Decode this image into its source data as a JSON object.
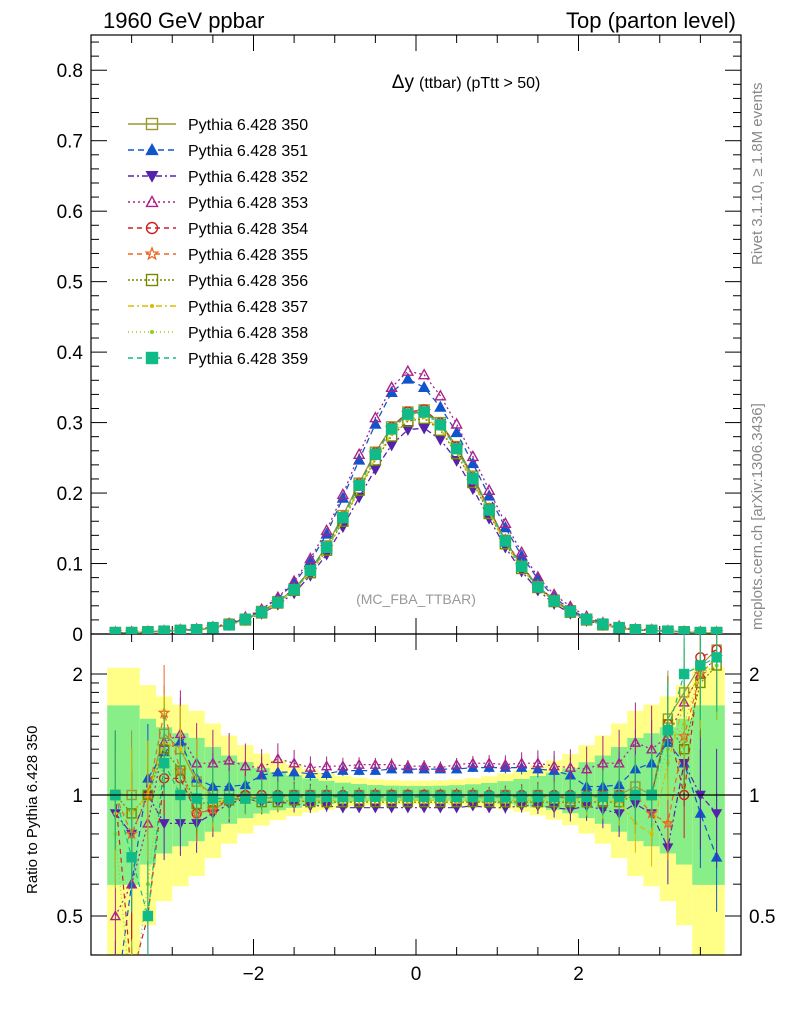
{
  "header": {
    "left": "1960 GeV ppbar",
    "right": "Top (parton level)"
  },
  "side": {
    "rivet": "Rivet 3.1.10, ≥ 1.8M events",
    "mcplots": "mcplots.cern.ch [arXiv:1306.3436]"
  },
  "chart_data": {
    "type": "line",
    "title": "Δy (ttbar) (pTtt > 50)",
    "title_main": "Δy",
    "title_sub": "(ttbar) (pTtt > 50)",
    "watermark": "(MC_FBA_TTBAR)",
    "ratio_ylabel": "Ratio to Pythia 6.428 350",
    "xlim": [
      -4.0,
      4.0
    ],
    "ylim": [
      0,
      0.85
    ],
    "ratio_ylim": [
      0.35,
      2.35
    ],
    "yticks": [
      "0",
      "0.1",
      "0.2",
      "0.3",
      "0.4",
      "0.5",
      "0.6",
      "0.7",
      "0.8"
    ],
    "xticks": [
      "−2",
      "0",
      "2"
    ],
    "ratio_yticks": [
      "0.5",
      "1",
      "2"
    ],
    "grid": false,
    "legend_position": "top-left",
    "x": [
      -3.7,
      -3.5,
      -3.3,
      -3.1,
      -2.9,
      -2.7,
      -2.5,
      -2.3,
      -2.1,
      -1.9,
      -1.7,
      -1.5,
      -1.3,
      -1.1,
      -0.9,
      -0.7,
      -0.5,
      -0.3,
      -0.1,
      0.1,
      0.3,
      0.5,
      0.7,
      0.9,
      1.1,
      1.3,
      1.5,
      1.7,
      1.9,
      2.1,
      2.3,
      2.5,
      2.7,
      2.9,
      3.1,
      3.3,
      3.5,
      3.7
    ],
    "series": [
      {
        "name": "Pythia 6.428 350",
        "color": "#999933",
        "marker": "square-open",
        "dash": "",
        "values": [
          0.002,
          0.002,
          0.003,
          0.004,
          0.005,
          0.006,
          0.009,
          0.014,
          0.021,
          0.032,
          0.046,
          0.064,
          0.091,
          0.125,
          0.168,
          0.214,
          0.258,
          0.294,
          0.315,
          0.318,
          0.3,
          0.266,
          0.224,
          0.178,
          0.133,
          0.097,
          0.068,
          0.048,
          0.033,
          0.021,
          0.014,
          0.009,
          0.006,
          0.005,
          0.004,
          0.003,
          0.002,
          0.002
        ],
        "ratio": [
          1.0,
          1.0,
          1.0,
          1.42,
          1.3,
          1.08,
          1.0,
          1.0,
          0.99,
          0.98,
          0.99,
          1.0,
          1.0,
          1.0,
          0.99,
          1.0,
          1.0,
          1.0,
          1.0,
          1.0,
          1.0,
          1.0,
          1.0,
          0.99,
          1.0,
          0.99,
          1.0,
          0.99,
          0.98,
          0.99,
          1.0,
          1.0,
          1.05,
          1.0,
          1.55,
          1.8,
          2.1,
          2.3
        ]
      },
      {
        "name": "Pythia 6.428 351",
        "color": "#1155cc",
        "marker": "triangle-up",
        "dash": "6,4",
        "values": [
          0.001,
          0.002,
          0.003,
          0.004,
          0.005,
          0.007,
          0.009,
          0.014,
          0.022,
          0.034,
          0.051,
          0.072,
          0.103,
          0.142,
          0.193,
          0.247,
          0.298,
          0.343,
          0.362,
          0.35,
          0.322,
          0.286,
          0.242,
          0.196,
          0.151,
          0.111,
          0.078,
          0.052,
          0.035,
          0.022,
          0.015,
          0.009,
          0.006,
          0.005,
          0.004,
          0.003,
          0.002,
          0.001
        ],
        "ratio": [
          0.3,
          0.6,
          1.1,
          1.28,
          1.36,
          1.1,
          1.05,
          1.05,
          1.06,
          1.12,
          1.14,
          1.14,
          1.13,
          1.13,
          1.15,
          1.15,
          1.15,
          1.16,
          1.16,
          1.16,
          1.16,
          1.16,
          1.17,
          1.17,
          1.17,
          1.17,
          1.16,
          1.15,
          1.12,
          1.05,
          1.05,
          1.06,
          1.16,
          1.2,
          1.35,
          1.2,
          0.9,
          0.7
        ]
      },
      {
        "name": "Pythia 6.428 352",
        "color": "#5522aa",
        "marker": "triangle-down",
        "dash": "6,3,2,3",
        "values": [
          0.002,
          0.002,
          0.003,
          0.004,
          0.005,
          0.006,
          0.008,
          0.013,
          0.02,
          0.029,
          0.042,
          0.058,
          0.083,
          0.113,
          0.152,
          0.194,
          0.234,
          0.268,
          0.29,
          0.292,
          0.276,
          0.246,
          0.206,
          0.164,
          0.123,
          0.089,
          0.062,
          0.043,
          0.029,
          0.019,
          0.013,
          0.008,
          0.006,
          0.005,
          0.004,
          0.003,
          0.002,
          0.002
        ],
        "ratio": [
          0.9,
          0.8,
          1.0,
          0.85,
          0.85,
          0.85,
          0.9,
          0.95,
          0.98,
          0.96,
          0.96,
          0.95,
          0.94,
          0.94,
          0.93,
          0.93,
          0.93,
          0.93,
          0.93,
          0.93,
          0.93,
          0.93,
          0.94,
          0.93,
          0.93,
          0.94,
          0.94,
          0.93,
          0.92,
          0.94,
          0.92,
          0.9,
          0.95,
          0.9,
          0.74,
          1.2,
          1.0,
          0.9
        ]
      },
      {
        "name": "Pythia 6.428 353",
        "color": "#aa2288",
        "marker": "triangle-up-open",
        "dash": "2,3",
        "values": [
          0.002,
          0.002,
          0.003,
          0.004,
          0.006,
          0.007,
          0.01,
          0.015,
          0.024,
          0.035,
          0.052,
          0.075,
          0.107,
          0.147,
          0.198,
          0.255,
          0.307,
          0.35,
          0.373,
          0.368,
          0.338,
          0.298,
          0.252,
          0.204,
          0.157,
          0.116,
          0.081,
          0.056,
          0.039,
          0.025,
          0.016,
          0.011,
          0.007,
          0.006,
          0.004,
          0.003,
          0.002,
          0.002
        ],
        "ratio": [
          0.5,
          0.6,
          0.85,
          1.35,
          1.42,
          1.2,
          1.2,
          1.22,
          1.18,
          1.17,
          1.23,
          1.2,
          1.17,
          1.18,
          1.18,
          1.19,
          1.19,
          1.19,
          1.18,
          1.18,
          1.17,
          1.19,
          1.2,
          1.2,
          1.19,
          1.2,
          1.2,
          1.18,
          1.17,
          1.16,
          1.2,
          1.2,
          1.35,
          1.3,
          1.4,
          1.7,
          2.0,
          2.2
        ]
      },
      {
        "name": "Pythia 6.428 354",
        "color": "#cc2222",
        "marker": "circle-open",
        "dash": "5,4",
        "values": [
          0.002,
          0.002,
          0.003,
          0.004,
          0.005,
          0.006,
          0.009,
          0.014,
          0.021,
          0.031,
          0.046,
          0.064,
          0.09,
          0.123,
          0.166,
          0.213,
          0.257,
          0.293,
          0.315,
          0.318,
          0.299,
          0.265,
          0.222,
          0.177,
          0.133,
          0.097,
          0.068,
          0.048,
          0.032,
          0.021,
          0.014,
          0.009,
          0.006,
          0.005,
          0.004,
          0.003,
          0.002,
          0.002
        ],
        "ratio": [
          1.0,
          0.35,
          0.5,
          1.1,
          1.1,
          0.9,
          0.92,
          0.98,
          1.0,
          1.0,
          1.0,
          1.0,
          1.0,
          1.0,
          1.0,
          1.0,
          1.0,
          1.0,
          1.0,
          1.0,
          1.0,
          1.0,
          1.0,
          1.0,
          1.0,
          1.0,
          1.0,
          1.0,
          1.0,
          1.0,
          1.0,
          1.0,
          1.0,
          1.0,
          1.5,
          1.0,
          2.2,
          2.3
        ]
      },
      {
        "name": "Pythia 6.428 355",
        "color": "#ee6622",
        "marker": "star-open",
        "dash": "5,4",
        "values": [
          0.002,
          0.002,
          0.003,
          0.004,
          0.005,
          0.006,
          0.009,
          0.013,
          0.021,
          0.031,
          0.045,
          0.063,
          0.09,
          0.123,
          0.166,
          0.213,
          0.256,
          0.292,
          0.313,
          0.316,
          0.298,
          0.264,
          0.222,
          0.177,
          0.133,
          0.097,
          0.068,
          0.047,
          0.032,
          0.021,
          0.014,
          0.009,
          0.006,
          0.005,
          0.004,
          0.003,
          0.002,
          0.002
        ],
        "ratio": [
          1.0,
          0.8,
          1.0,
          1.6,
          1.15,
          0.9,
          0.92,
          0.97,
          0.98,
          0.99,
          0.99,
          0.99,
          0.99,
          0.99,
          0.99,
          0.99,
          0.99,
          0.99,
          0.99,
          0.99,
          0.99,
          0.99,
          0.99,
          0.99,
          0.99,
          0.99,
          0.99,
          0.99,
          0.99,
          0.99,
          0.99,
          0.98,
          1.0,
          0.9,
          0.85,
          1.4,
          2.0,
          2.2
        ]
      },
      {
        "name": "Pythia 6.428 356",
        "color": "#778800",
        "marker": "square-open",
        "dash": "2,2",
        "values": [
          0.002,
          0.002,
          0.003,
          0.004,
          0.005,
          0.006,
          0.009,
          0.013,
          0.02,
          0.03,
          0.044,
          0.062,
          0.087,
          0.119,
          0.16,
          0.204,
          0.247,
          0.281,
          0.302,
          0.306,
          0.289,
          0.256,
          0.215,
          0.171,
          0.128,
          0.093,
          0.066,
          0.046,
          0.031,
          0.02,
          0.013,
          0.009,
          0.006,
          0.005,
          0.004,
          0.003,
          0.002,
          0.002
        ],
        "ratio": [
          1.0,
          0.9,
          1.0,
          1.3,
          1.15,
          0.95,
          0.96,
          0.97,
          0.98,
          0.96,
          0.96,
          0.97,
          0.96,
          0.96,
          0.96,
          0.96,
          0.96,
          0.96,
          0.96,
          0.96,
          0.96,
          0.96,
          0.96,
          0.96,
          0.96,
          0.96,
          0.96,
          0.96,
          0.96,
          0.96,
          0.96,
          0.96,
          1.0,
          1.0,
          1.5,
          1.3,
          1.9,
          2.1
        ]
      },
      {
        "name": "Pythia 6.428 357",
        "color": "#ddbb00",
        "marker": "dot",
        "dash": "6,3,2,3",
        "values": [
          0.002,
          0.002,
          0.003,
          0.004,
          0.005,
          0.006,
          0.009,
          0.013,
          0.02,
          0.03,
          0.044,
          0.062,
          0.088,
          0.12,
          0.161,
          0.206,
          0.249,
          0.284,
          0.305,
          0.308,
          0.291,
          0.258,
          0.216,
          0.172,
          0.129,
          0.094,
          0.066,
          0.046,
          0.031,
          0.02,
          0.013,
          0.009,
          0.006,
          0.005,
          0.004,
          0.003,
          0.002,
          0.002
        ],
        "ratio": [
          0.9,
          0.9,
          1.0,
          1.35,
          1.3,
          1.1,
          0.95,
          0.97,
          0.97,
          0.97,
          0.97,
          0.97,
          0.97,
          0.97,
          0.97,
          0.97,
          0.97,
          0.97,
          0.97,
          0.97,
          0.97,
          0.97,
          0.97,
          0.97,
          0.97,
          0.97,
          0.97,
          0.97,
          0.97,
          0.97,
          0.97,
          0.96,
          0.85,
          0.8,
          1.2,
          1.7,
          2.0,
          2.2
        ]
      },
      {
        "name": "Pythia 6.428 358",
        "color": "#99cc22",
        "marker": "dot",
        "dash": "1,3",
        "values": [
          0.002,
          0.002,
          0.003,
          0.004,
          0.005,
          0.006,
          0.009,
          0.013,
          0.021,
          0.031,
          0.045,
          0.063,
          0.089,
          0.122,
          0.164,
          0.21,
          0.253,
          0.289,
          0.31,
          0.313,
          0.295,
          0.262,
          0.22,
          0.175,
          0.131,
          0.095,
          0.067,
          0.047,
          0.032,
          0.02,
          0.014,
          0.009,
          0.006,
          0.005,
          0.004,
          0.003,
          0.002,
          0.002
        ],
        "ratio": [
          0.8,
          0.3,
          0.6,
          1.3,
          1.0,
          1.0,
          0.98,
          0.98,
          0.98,
          0.98,
          0.98,
          0.98,
          0.98,
          0.98,
          0.98,
          0.98,
          0.98,
          0.98,
          0.98,
          0.98,
          0.98,
          0.98,
          0.98,
          0.98,
          0.98,
          0.98,
          0.98,
          0.98,
          0.98,
          0.98,
          0.98,
          0.98,
          1.0,
          1.0,
          1.3,
          1.5,
          2.0,
          2.1
        ]
      },
      {
        "name": "Pythia 6.428 359",
        "color": "#11bb88",
        "marker": "square",
        "dash": "5,4",
        "values": [
          0.002,
          0.002,
          0.003,
          0.004,
          0.005,
          0.006,
          0.009,
          0.013,
          0.021,
          0.031,
          0.045,
          0.063,
          0.09,
          0.123,
          0.165,
          0.211,
          0.255,
          0.291,
          0.312,
          0.315,
          0.297,
          0.263,
          0.221,
          0.176,
          0.132,
          0.096,
          0.067,
          0.047,
          0.032,
          0.021,
          0.014,
          0.009,
          0.006,
          0.005,
          0.004,
          0.003,
          0.002,
          0.002
        ],
        "ratio": [
          1.0,
          0.7,
          0.5,
          1.2,
          1.0,
          0.98,
          0.98,
          0.98,
          0.98,
          0.98,
          0.99,
          0.99,
          0.99,
          0.99,
          0.99,
          0.99,
          0.99,
          0.99,
          0.99,
          0.99,
          0.99,
          0.99,
          0.99,
          0.99,
          0.99,
          0.99,
          0.99,
          0.99,
          0.99,
          0.99,
          0.99,
          0.99,
          1.0,
          1.0,
          1.45,
          2.0,
          2.1,
          2.2
        ]
      }
    ]
  }
}
